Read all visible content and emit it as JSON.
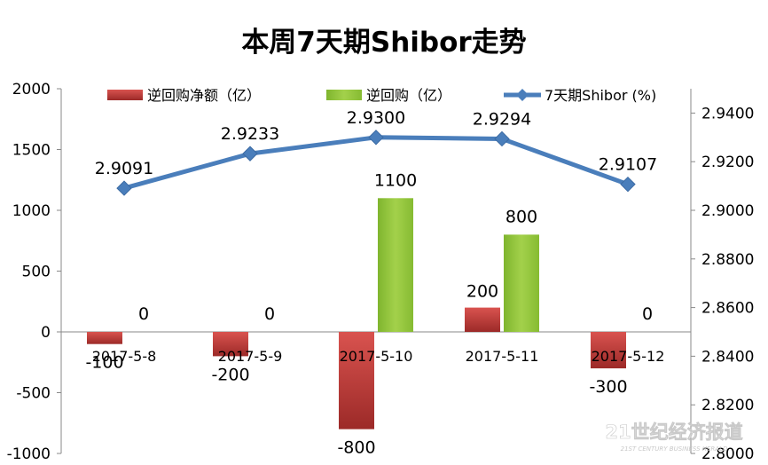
{
  "chart_data": {
    "type": "bar",
    "title": "本周7天期Shibor走势",
    "categories": [
      "2017-5-8",
      "2017-5-9",
      "2017-5-10",
      "2017-5-11",
      "2017-5-12"
    ],
    "series": [
      {
        "name": "逆回购净额（亿）",
        "type": "bar",
        "axis": "left",
        "color": "#c0393a",
        "values": [
          -100,
          -200,
          -800,
          200,
          -300
        ]
      },
      {
        "name": "逆回购（亿）",
        "type": "bar",
        "axis": "left",
        "color": "#8fc33a",
        "values": [
          0,
          0,
          1100,
          800,
          0
        ]
      },
      {
        "name": "7天期Shibor (%)",
        "type": "line",
        "axis": "right",
        "color": "#4a7ebb",
        "marker": "diamond",
        "values": [
          2.9091,
          2.9233,
          2.93,
          2.9294,
          2.9107
        ]
      }
    ],
    "y_left": {
      "min": -1000,
      "max": 2000,
      "step": 500,
      "ticks": [
        "-1000",
        "-500",
        "0",
        "500",
        "1000",
        "1500",
        "2000"
      ]
    },
    "y_right": {
      "min": 2.8,
      "max": 2.95,
      "step": 0.02,
      "ticks": [
        "2.8000",
        "2.8200",
        "2.8400",
        "2.8600",
        "2.8800",
        "2.9000",
        "2.9200",
        "2.9400"
      ]
    },
    "point_labels": {
      "net": [
        "-100",
        "-200",
        "-800",
        "200",
        "-300"
      ],
      "repo": [
        "0",
        "0",
        "1100",
        "800",
        "0"
      ],
      "shibor": [
        "2.9091",
        "2.9233",
        "2.9300",
        "2.9294",
        "2.9107"
      ]
    },
    "legend_position": "top",
    "grid": false
  },
  "watermark": {
    "main": "21世纪经济报道",
    "sub": "21ST CENTURY BUSINESS HERALD"
  }
}
